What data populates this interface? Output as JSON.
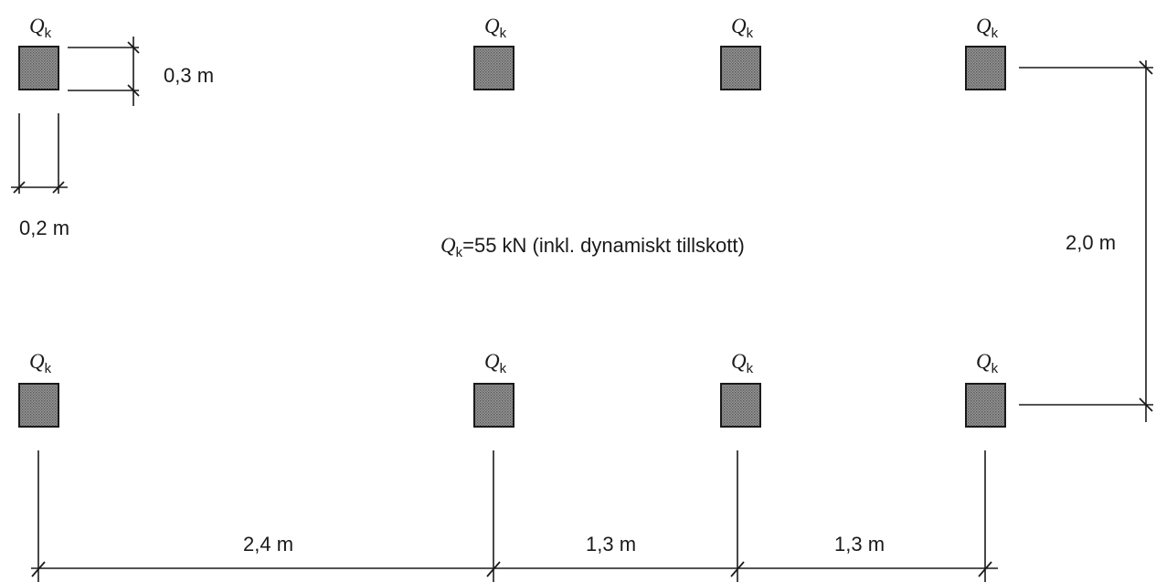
{
  "load": {
    "symbol": "Q",
    "subscript": "k",
    "value_text": "=55 kN (inkl. dynamiskt tillskott)"
  },
  "dimensions": {
    "pad_height": "0,3 m",
    "pad_width": "0,2 m",
    "row_spacing": "2,0 m",
    "span_1": "2,4 m",
    "span_2": "1,3 m",
    "span_3": "1,3 m"
  },
  "load_labels": {
    "symbol": "Q",
    "subscript": "k",
    "count": 8
  }
}
